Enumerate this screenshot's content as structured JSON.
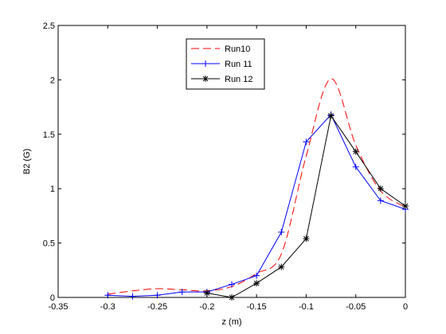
{
  "chart_data": {
    "type": "line",
    "title": "",
    "xlabel": "z (m)",
    "ylabel": "B2 (G)",
    "xlim": [
      -0.35,
      0
    ],
    "ylim": [
      0,
      2.5
    ],
    "xticks": [
      -0.35,
      -0.3,
      -0.25,
      -0.2,
      -0.15,
      -0.1,
      -0.05,
      0
    ],
    "xtick_labels": [
      "-0.35",
      "-0.3",
      "-0.25",
      "-0.2",
      "-0.15",
      "-0.1",
      "-0.05",
      "0"
    ],
    "yticks": [
      0,
      0.5,
      1,
      1.5,
      2,
      2.5
    ],
    "ytick_labels": [
      "0",
      "0.5",
      "1",
      "1.5",
      "2",
      "2.5"
    ],
    "grid": false,
    "legend_position": "top-center",
    "series": [
      {
        "name": "Run10",
        "color": "#ff0000",
        "line_style": "dashed",
        "marker": "none",
        "x": [
          -0.3,
          -0.275,
          -0.25,
          -0.225,
          -0.2,
          -0.175,
          -0.15,
          -0.125,
          -0.1,
          -0.075,
          -0.05,
          -0.025,
          0
        ],
        "y": [
          0.03,
          0.06,
          0.08,
          0.07,
          0.06,
          0.1,
          0.22,
          0.4,
          1.3,
          2.01,
          1.4,
          0.98,
          0.83
        ]
      },
      {
        "name": "Run 11",
        "color": "#0000ff",
        "line_style": "solid",
        "marker": "plus",
        "x": [
          -0.3,
          -0.275,
          -0.25,
          -0.225,
          -0.2,
          -0.175,
          -0.15,
          -0.125,
          -0.1,
          -0.075,
          -0.05,
          -0.025,
          0
        ],
        "y": [
          0.02,
          0.01,
          0.02,
          0.05,
          0.05,
          0.12,
          0.2,
          0.6,
          1.43,
          1.68,
          1.2,
          0.89,
          0.81
        ]
      },
      {
        "name": "Run 12",
        "color": "#000000",
        "line_style": "solid",
        "marker": "star",
        "x": [
          -0.2,
          -0.175,
          -0.15,
          -0.125,
          -0.1,
          -0.075,
          -0.05,
          -0.025,
          0
        ],
        "y": [
          0.04,
          0.0,
          0.13,
          0.28,
          0.54,
          1.67,
          1.34,
          1.0,
          0.84
        ]
      }
    ]
  }
}
